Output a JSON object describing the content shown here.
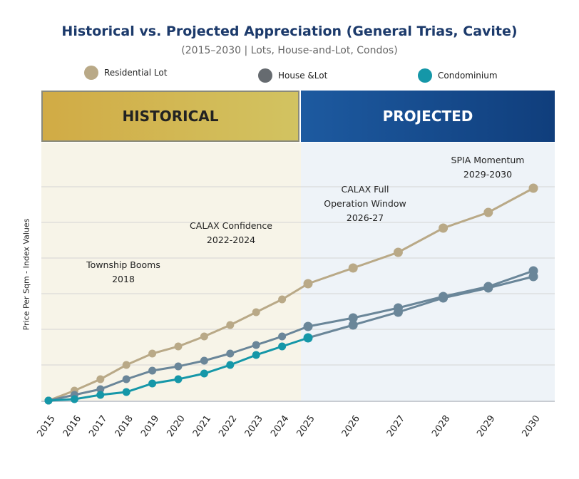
{
  "chart_data": {
    "type": "line",
    "title": "Historical vs. Projected Appreciation (General Trias, Cavite)",
    "subtitle": "(2015–2030 | Lots, House-and-Lot, Condos)",
    "ylabel": "Price Per Sqm - Index Values",
    "xlabel": "",
    "ylim": [
      100,
      260
    ],
    "grid": true,
    "legend_position": "top",
    "x": [
      "2015",
      "2016",
      "2017",
      "2018",
      "2019",
      "2020",
      "2021",
      "2022",
      "2023",
      "2024",
      "2025",
      "2026",
      "2027",
      "2028",
      "2029",
      "2030"
    ],
    "series": [
      {
        "name": "Residential Lot",
        "color": "#b9a987",
        "values": [
          100,
          107,
          115,
          125,
          133,
          138,
          145,
          153,
          162,
          171,
          182,
          193,
          204,
          221,
          232,
          249
        ]
      },
      {
        "name": "House &Lot",
        "color": "#6a8699",
        "values": [
          100,
          104,
          108,
          115,
          121,
          124,
          128,
          133,
          139,
          145,
          152,
          158,
          165,
          173,
          180,
          191
        ]
      },
      {
        "name": "Condominium",
        "color": "#1597a8",
        "values": [
          100,
          101,
          104,
          106,
          112,
          115,
          119,
          125,
          132,
          138,
          144,
          153,
          162,
          172,
          179,
          187
        ]
      }
    ],
    "regions": [
      {
        "label": "HISTORICAL",
        "from": "2015",
        "to": "2025"
      },
      {
        "label": "PROJECTED",
        "from": "2025",
        "to": "2030"
      }
    ],
    "annotations": [
      {
        "text": "Township Booms\n2018"
      },
      {
        "text": "CALAX Confidence\n2022-2024"
      },
      {
        "text": "CALAX Full\nOperation Window\n2026-27"
      },
      {
        "text": "SPIA Momentum\n2029-2030"
      }
    ]
  },
  "colors": {
    "historical_bg": "#f7f4e8",
    "projected_bg": "#eef3f8",
    "historical_band": "#d1b34f",
    "projected_band": "#15488a"
  }
}
